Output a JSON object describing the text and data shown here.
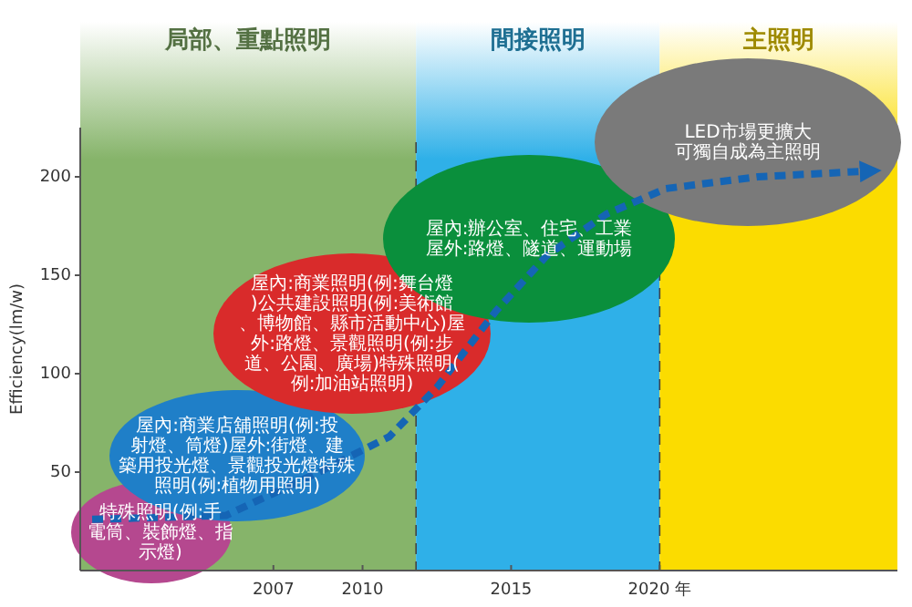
{
  "chart_data": {
    "type": "line",
    "ylabel": "Efficiency(lm/w)",
    "xlim": [
      2000.5,
      2028
    ],
    "xticks": [
      2007,
      2010,
      2015,
      {
        "value": 2020,
        "label": "2020 年"
      }
    ],
    "ylim": [
      0,
      225
    ],
    "yticks": [
      50,
      100,
      150,
      200
    ],
    "grid": false,
    "bands": [
      {
        "axis": "x",
        "from": 2000.5,
        "to": 2011.8,
        "label": "局部、重點照明",
        "color": "#86b46a"
      },
      {
        "axis": "x",
        "from": 2011.8,
        "to": 2020,
        "label": "間接照明",
        "color": "#2fb0e8"
      },
      {
        "axis": "x",
        "from": 2020,
        "to": 2028,
        "label": "主照明",
        "color": "#fbdc00"
      }
    ],
    "ref_lines": [
      {
        "axis": "x",
        "value": 2011.8,
        "line_style": "dashed",
        "color": "#444444"
      },
      {
        "axis": "x",
        "value": 2020,
        "line_style": "dashed",
        "color": "#444444"
      }
    ],
    "series": [
      {
        "line_style": "dashed",
        "color": "#1565b5",
        "x": [
          2000.9,
          2005.4,
          2008.4,
          2010.9,
          2012.5,
          2014.5,
          2016.2,
          2018.2,
          2020.2,
          2023.3,
          2027.1
        ],
        "values": [
          26,
          28,
          49,
          68,
          93,
          132,
          160,
          181,
          194,
          200,
          203
        ]
      }
    ],
    "annotations": [
      "特殊照明(例:手電筒、裝飾燈、指示燈)",
      "屋內:商業店舖照明(例:投射燈、筒燈)屋外:街燈、建築用投光燈、景觀投光燈特殊照明(例:植物用照明)",
      "屋內:商業照明(例:舞台燈)公共建設照明(例:美術館、博物館、縣市活動中心)屋外:路燈、景觀照明(例:步道、公園、廣場)特殊照明(例:加油站照明)",
      "屋內:辦公室、住宅、工業屋外:路燈、隧道、運動場",
      "LED市場更擴大可獨自成為主照明"
    ]
  }
}
